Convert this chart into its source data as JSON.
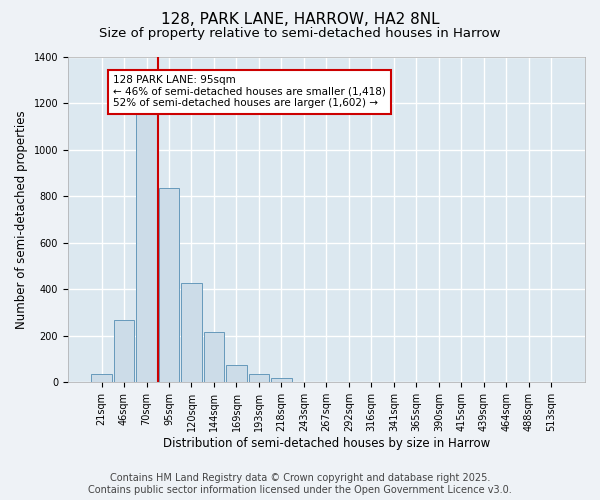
{
  "title": "128, PARK LANE, HARROW, HA2 8NL",
  "subtitle": "Size of property relative to semi-detached houses in Harrow",
  "xlabel": "Distribution of semi-detached houses by size in Harrow",
  "ylabel": "Number of semi-detached properties",
  "bar_values": [
    35,
    270,
    1160,
    835,
    425,
    215,
    75,
    35,
    20,
    0,
    0,
    0,
    0,
    0,
    0,
    0,
    0,
    0,
    0,
    0,
    0
  ],
  "categories": [
    "21sqm",
    "46sqm",
    "70sqm",
    "95sqm",
    "120sqm",
    "144sqm",
    "169sqm",
    "193sqm",
    "218sqm",
    "243sqm",
    "267sqm",
    "292sqm",
    "316sqm",
    "341sqm",
    "365sqm",
    "390sqm",
    "415sqm",
    "439sqm",
    "464sqm",
    "488sqm",
    "513sqm"
  ],
  "bar_color": "#ccdce8",
  "bar_edge_color": "#6699bb",
  "red_line_x": 2.5,
  "red_line_color": "#cc0000",
  "annotation_text": "128 PARK LANE: 95sqm\n← 46% of semi-detached houses are smaller (1,418)\n52% of semi-detached houses are larger (1,602) →",
  "annotation_box_color": "#ffffff",
  "annotation_box_edge": "#cc0000",
  "ylim": [
    0,
    1400
  ],
  "yticks": [
    0,
    200,
    400,
    600,
    800,
    1000,
    1200,
    1400
  ],
  "footer_line1": "Contains HM Land Registry data © Crown copyright and database right 2025.",
  "footer_line2": "Contains public sector information licensed under the Open Government Licence v3.0.",
  "background_color": "#eef2f6",
  "plot_bg_color": "#dce8f0",
  "grid_color": "#ffffff",
  "title_fontsize": 11,
  "subtitle_fontsize": 9.5,
  "axis_label_fontsize": 8.5,
  "tick_fontsize": 7,
  "annotation_fontsize": 7.5,
  "footer_fontsize": 7
}
